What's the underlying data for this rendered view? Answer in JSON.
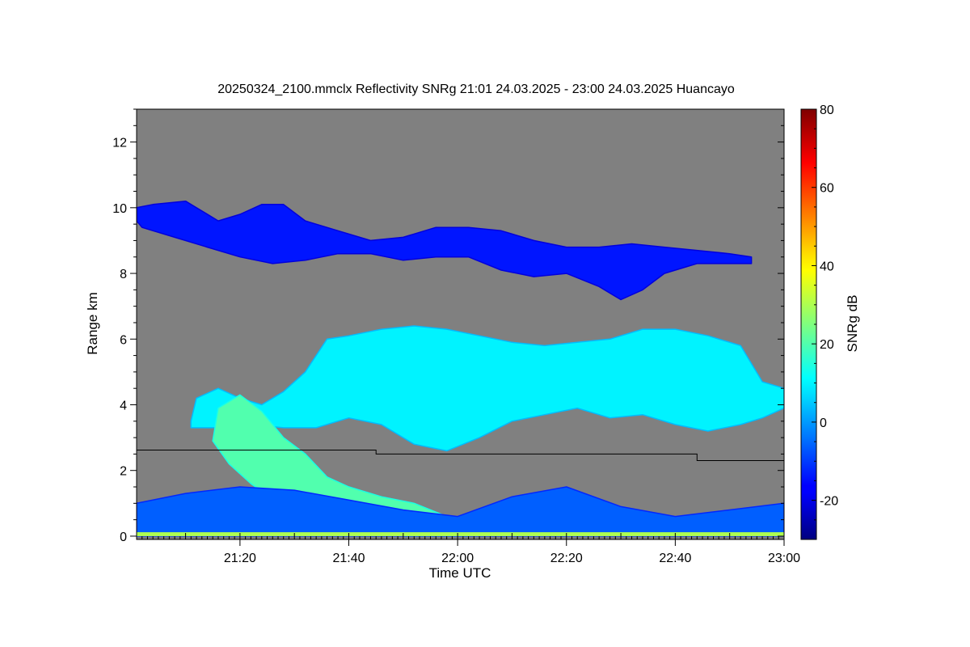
{
  "chart_data": {
    "type": "heatmap",
    "title": "20250324_2100.mmclx Reflectivity SNRg   21:01 24.03.2025 - 23:00 24.03.2025 Huancayo",
    "xlabel": "Time UTC",
    "ylabel": "Range km",
    "colorbar_label": "SNRg dB",
    "xlim_minutes_utc": [
      1261,
      1380
    ],
    "ylim_km": [
      -0.1,
      13
    ],
    "x_ticks": [
      {
        "minute": 1280,
        "label": "21:20"
      },
      {
        "minute": 1300,
        "label": "21:40"
      },
      {
        "minute": 1320,
        "label": "22:00"
      },
      {
        "minute": 1340,
        "label": "22:20"
      },
      {
        "minute": 1360,
        "label": "22:40"
      },
      {
        "minute": 1380,
        "label": "23:00"
      }
    ],
    "y_ticks": [
      {
        "value": 0,
        "label": "0"
      },
      {
        "value": 2,
        "label": "2"
      },
      {
        "value": 4,
        "label": "4"
      },
      {
        "value": 6,
        "label": "6"
      },
      {
        "value": 8,
        "label": "8"
      },
      {
        "value": 10,
        "label": "10"
      },
      {
        "value": 12,
        "label": "12"
      }
    ],
    "colorbar": {
      "range": [
        -30,
        80
      ],
      "ticks": [
        {
          "value": -20,
          "label": "-20"
        },
        {
          "value": 0,
          "label": "0"
        },
        {
          "value": 20,
          "label": "20"
        },
        {
          "value": 40,
          "label": "40"
        },
        {
          "value": 60,
          "label": "60"
        },
        {
          "value": 80,
          "label": "80"
        }
      ],
      "colormap": "jet"
    },
    "background_color": "#808080",
    "layers": [
      {
        "kind": "cirrus",
        "snr_db": -14,
        "top_km": [
          [
            1261,
            10.0
          ],
          [
            1264,
            10.1
          ],
          [
            1270,
            10.2
          ],
          [
            1276,
            9.6
          ],
          [
            1280,
            9.8
          ],
          [
            1284,
            10.1
          ],
          [
            1288,
            10.1
          ],
          [
            1292,
            9.6
          ],
          [
            1298,
            9.3
          ],
          [
            1304,
            9.0
          ],
          [
            1310,
            9.1
          ],
          [
            1316,
            9.4
          ],
          [
            1322,
            9.4
          ],
          [
            1328,
            9.3
          ],
          [
            1334,
            9.0
          ],
          [
            1340,
            8.8
          ],
          [
            1346,
            8.8
          ],
          [
            1352,
            8.9
          ],
          [
            1358,
            8.8
          ],
          [
            1364,
            8.7
          ],
          [
            1370,
            8.6
          ],
          [
            1374,
            8.5
          ]
        ],
        "bottom_km": [
          [
            1374,
            8.3
          ],
          [
            1370,
            8.3
          ],
          [
            1364,
            8.3
          ],
          [
            1358,
            8.0
          ],
          [
            1354,
            7.5
          ],
          [
            1350,
            7.2
          ],
          [
            1346,
            7.6
          ],
          [
            1340,
            8.0
          ],
          [
            1334,
            7.9
          ],
          [
            1328,
            8.1
          ],
          [
            1322,
            8.5
          ],
          [
            1316,
            8.5
          ],
          [
            1310,
            8.4
          ],
          [
            1304,
            8.6
          ],
          [
            1298,
            8.6
          ],
          [
            1292,
            8.4
          ],
          [
            1286,
            8.3
          ],
          [
            1280,
            8.5
          ],
          [
            1274,
            8.8
          ],
          [
            1268,
            9.1
          ],
          [
            1262,
            9.4
          ],
          [
            1261,
            9.6
          ]
        ]
      },
      {
        "kind": "mid_level_cloud",
        "snr_db": 10,
        "top_km": [
          [
            1271,
            3.5
          ],
          [
            1272,
            4.2
          ],
          [
            1276,
            4.5
          ],
          [
            1280,
            4.2
          ],
          [
            1284,
            4.0
          ],
          [
            1288,
            4.4
          ],
          [
            1292,
            5.0
          ],
          [
            1296,
            6.0
          ],
          [
            1300,
            6.1
          ],
          [
            1306,
            6.3
          ],
          [
            1312,
            6.4
          ],
          [
            1318,
            6.3
          ],
          [
            1324,
            6.1
          ],
          [
            1330,
            5.9
          ],
          [
            1336,
            5.8
          ],
          [
            1342,
            5.9
          ],
          [
            1348,
            6.0
          ],
          [
            1354,
            6.3
          ],
          [
            1360,
            6.3
          ],
          [
            1366,
            6.1
          ],
          [
            1372,
            5.8
          ],
          [
            1376,
            4.7
          ],
          [
            1380,
            4.5
          ]
        ],
        "bottom_km": [
          [
            1380,
            3.9
          ],
          [
            1376,
            3.6
          ],
          [
            1372,
            3.4
          ],
          [
            1366,
            3.2
          ],
          [
            1360,
            3.4
          ],
          [
            1354,
            3.7
          ],
          [
            1348,
            3.6
          ],
          [
            1342,
            3.9
          ],
          [
            1336,
            3.7
          ],
          [
            1330,
            3.5
          ],
          [
            1324,
            3.0
          ],
          [
            1318,
            2.6
          ],
          [
            1312,
            2.8
          ],
          [
            1306,
            3.4
          ],
          [
            1300,
            3.6
          ],
          [
            1294,
            3.3
          ],
          [
            1288,
            3.3
          ],
          [
            1282,
            3.4
          ],
          [
            1276,
            3.3
          ],
          [
            1271,
            3.3
          ]
        ]
      },
      {
        "kind": "fallstreak_precipitation",
        "snr_db": 20,
        "top_km": [
          [
            1276,
            3.9
          ],
          [
            1280,
            4.3
          ],
          [
            1284,
            3.8
          ],
          [
            1288,
            3.0
          ],
          [
            1292,
            2.5
          ],
          [
            1296,
            1.8
          ],
          [
            1300,
            1.5
          ],
          [
            1306,
            1.2
          ],
          [
            1312,
            1.0
          ],
          [
            1318,
            0.6
          ],
          [
            1322,
            0.3
          ]
        ],
        "bottom_km": [
          [
            1322,
            0.0
          ],
          [
            1310,
            0.0
          ],
          [
            1300,
            0.2
          ],
          [
            1294,
            0.6
          ],
          [
            1288,
            0.9
          ],
          [
            1282,
            1.6
          ],
          [
            1278,
            2.2
          ],
          [
            1275,
            2.9
          ]
        ]
      },
      {
        "kind": "boundary_layer_echo",
        "snr_db": -6,
        "top_km": [
          [
            1261,
            1.0
          ],
          [
            1270,
            1.3
          ],
          [
            1280,
            1.5
          ],
          [
            1290,
            1.4
          ],
          [
            1300,
            1.1
          ],
          [
            1310,
            0.8
          ],
          [
            1320,
            0.6
          ],
          [
            1330,
            1.2
          ],
          [
            1340,
            1.5
          ],
          [
            1350,
            0.9
          ],
          [
            1360,
            0.6
          ],
          [
            1370,
            0.8
          ],
          [
            1380,
            1.0
          ]
        ],
        "bottom_km": [
          [
            1380,
            0.0
          ],
          [
            1261,
            0.0
          ]
        ]
      }
    ],
    "surface_band": {
      "range_km": [
        0.0,
        0.12
      ],
      "snr_db": 30
    },
    "reference_line_km": [
      [
        1261,
        2.62
      ],
      [
        1305,
        2.62
      ],
      [
        1305,
        2.5
      ],
      [
        1364,
        2.5
      ],
      [
        1364,
        2.3
      ],
      [
        1380,
        2.3
      ]
    ]
  }
}
